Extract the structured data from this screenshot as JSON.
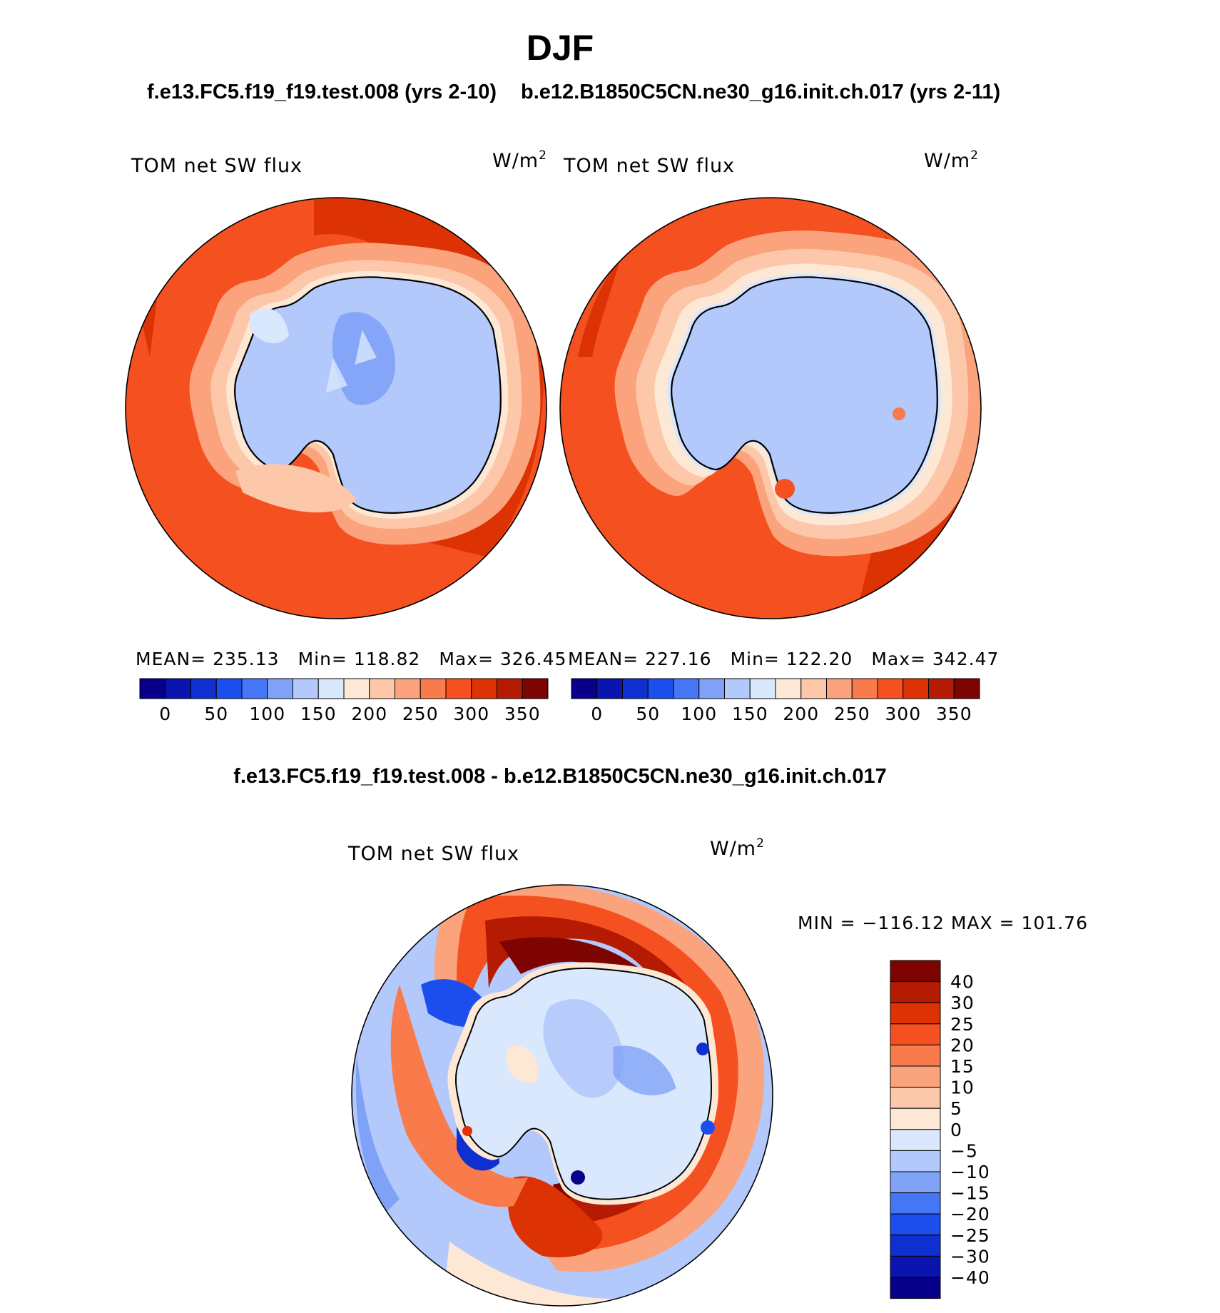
{
  "figure": {
    "season": "DJF",
    "header_left": "f.e13.FC5.f19_f19.test.008 (yrs 2-10)",
    "header_right": "b.e12.B1850C5CN.ne30_g16.init.ch.017 (yrs 2-11)",
    "diff_title": "f.e13.FC5.f19_f19.test.008 - b.e12.B1850C5CN.ne30_g16.init.ch.017"
  },
  "panels": [
    {
      "variable": "TOM net SW flux",
      "units": "W/m",
      "units_exp": "2",
      "mean_label": "MEAN=",
      "mean": "235.13",
      "min_label": "Min=",
      "min": "118.82",
      "max_label": "Max=",
      "max": "326.45"
    },
    {
      "variable": "TOM net SW flux",
      "units": "W/m",
      "units_exp": "2",
      "mean_label": "MEAN=",
      "mean": "227.16",
      "min_label": "Min=",
      "min": "122.20",
      "max_label": "Max=",
      "max": "342.47"
    }
  ],
  "diff_panel": {
    "variable": "TOM net SW flux",
    "units": "W/m",
    "units_exp": "2",
    "minmax_text": "MIN = −116.12 MAX = 101.76"
  },
  "colorbar_abs": {
    "colors": [
      "#08008a",
      "#0a15b0",
      "#0f2fd0",
      "#1c4eee",
      "#4476f6",
      "#7fa2f7",
      "#b3c9fb",
      "#d9e8fd",
      "#fde8d6",
      "#fcc8a9",
      "#fba37c",
      "#f97a4a",
      "#f5501f",
      "#dd3204",
      "#b51a02",
      "#7d0400"
    ],
    "tick_labels": [
      "0",
      "50",
      "100",
      "150",
      "200",
      "250",
      "300",
      "350"
    ]
  },
  "colorbar_diff": {
    "colors": [
      "#08008a",
      "#0a15b0",
      "#0f2fd0",
      "#1c4eee",
      "#4476f6",
      "#7fa2f7",
      "#b3c9fb",
      "#d9e8fd",
      "#fde8d6",
      "#fcc8a9",
      "#fba37c",
      "#f97a4a",
      "#f5501f",
      "#dd3204",
      "#b51a02",
      "#7d0400"
    ],
    "tick_labels": [
      "40",
      "30",
      "25",
      "20",
      "15",
      "10",
      "5",
      "0",
      "−5",
      "−10",
      "−15",
      "−20",
      "−25",
      "−30",
      "−40"
    ]
  }
}
